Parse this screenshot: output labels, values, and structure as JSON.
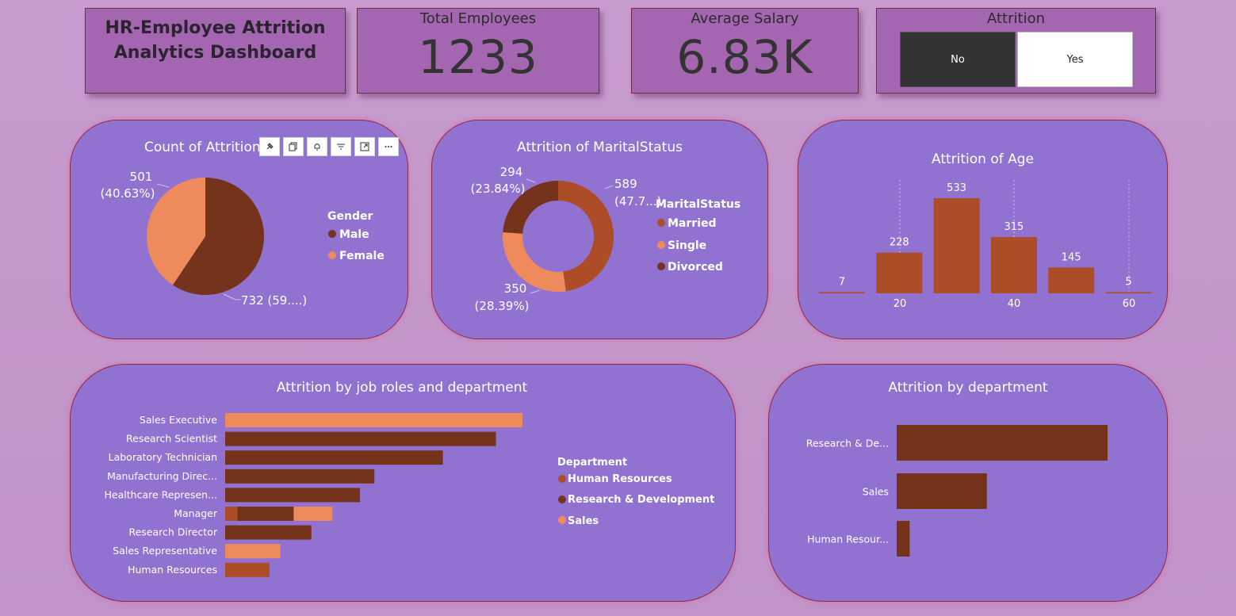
{
  "header": {
    "title_line1": "HR-Employee Attrition",
    "title_line2": "Analytics Dashboard"
  },
  "kpis": {
    "total_employees_label": "Total Employees",
    "total_employees_value": "1233",
    "avg_salary_label": "Average Salary",
    "avg_salary_value": "6.83K"
  },
  "slicer": {
    "title": "Attrition",
    "options": [
      "No",
      "Yes"
    ],
    "selected": "No"
  },
  "panels": {
    "gender": {
      "title": "Count of Attrition",
      "legend_title": "Gender",
      "slices": [
        {
          "name": "Male",
          "value": 732,
          "label_line1": "732 (59....)",
          "label_line2": "",
          "color": "#74331a"
        },
        {
          "name": "Female",
          "value": 501,
          "label_line1": "501",
          "label_line2": "(40.63%)",
          "color": "#ee8a5c"
        }
      ]
    },
    "marital": {
      "title": "Attrition of MaritalStatus",
      "legend_title": "MaritalStatus",
      "slices": [
        {
          "name": "Married",
          "value": 589,
          "label_line1": "589",
          "label_line2": "(47.7...)",
          "color": "#ad4d28"
        },
        {
          "name": "Single",
          "value": 350,
          "label_line1": "350",
          "label_line2": "(28.39%)",
          "color": "#ee8a5c"
        },
        {
          "name": "Divorced",
          "value": 294,
          "label_line1": "294",
          "label_line2": "(23.84%)",
          "color": "#74331a"
        }
      ]
    },
    "age": {
      "title": "Attrition of Age",
      "values": [
        7,
        228,
        533,
        315,
        145,
        5
      ],
      "value_labels": [
        "7",
        "228",
        "533",
        "315",
        "145",
        "5"
      ],
      "tick_labels": [
        "20",
        "40",
        "60"
      ],
      "color": "#ad4d28"
    },
    "jobroles": {
      "title": "Attrition by job roles and department",
      "legend_title": "Department",
      "departments": [
        {
          "name": "Human Resources",
          "color": "#ad4d28"
        },
        {
          "name": "Research & Development",
          "color": "#74331a"
        },
        {
          "name": "Sales",
          "color": "#ee8a5c"
        }
      ],
      "rows": [
        {
          "role": "Sales Executive",
          "hr": 0,
          "rd": 0,
          "sales": 269
        },
        {
          "role": "Research Scientist",
          "hr": 0,
          "rd": 245,
          "sales": 0
        },
        {
          "role": "Laboratory Technician",
          "hr": 0,
          "rd": 197,
          "sales": 0
        },
        {
          "role": "Manufacturing Direc...",
          "hr": 0,
          "rd": 135,
          "sales": 0
        },
        {
          "role": "Healthcare Represen...",
          "hr": 0,
          "rd": 122,
          "sales": 0
        },
        {
          "role": "Manager",
          "hr": 11,
          "rd": 51,
          "sales": 35
        },
        {
          "role": "Research Director",
          "hr": 0,
          "rd": 78,
          "sales": 0
        },
        {
          "role": "Sales Representative",
          "hr": 0,
          "rd": 0,
          "sales": 50
        },
        {
          "role": "Human Resources",
          "hr": 40,
          "rd": 0,
          "sales": 0
        }
      ]
    },
    "department": {
      "title": "Attrition by department",
      "categories": [
        "Research & De...",
        "Sales",
        "Human Resour..."
      ],
      "values": [
        828,
        354,
        51
      ],
      "color": "#74331a"
    }
  },
  "chart_data": [
    {
      "type": "pie",
      "title": "Count of Attrition",
      "legend_title": "Gender",
      "categories": [
        "Male",
        "Female"
      ],
      "values": [
        732,
        501
      ]
    },
    {
      "type": "pie",
      "title": "Attrition of MaritalStatus",
      "legend_title": "MaritalStatus",
      "categories": [
        "Married",
        "Single",
        "Divorced"
      ],
      "values": [
        589,
        350,
        294
      ]
    },
    {
      "type": "bar",
      "title": "Attrition of Age",
      "values": [
        7,
        228,
        533,
        315,
        145,
        5
      ],
      "tick_labels": [
        "20",
        "40",
        "60"
      ]
    },
    {
      "type": "bar",
      "title": "Attrition by job roles and department",
      "categories": [
        "Sales Executive",
        "Research Scientist",
        "Laboratory Technician",
        "Manufacturing Direc...",
        "Healthcare Represen...",
        "Manager",
        "Research Director",
        "Sales Representative",
        "Human Resources"
      ],
      "series": [
        {
          "name": "Human Resources",
          "values": [
            0,
            0,
            0,
            0,
            0,
            11,
            0,
            0,
            40
          ]
        },
        {
          "name": "Research & Development",
          "values": [
            0,
            245,
            197,
            135,
            122,
            51,
            78,
            0,
            0
          ]
        },
        {
          "name": "Sales",
          "values": [
            269,
            0,
            0,
            0,
            0,
            35,
            0,
            50,
            0
          ]
        }
      ],
      "legend_title": "Department"
    },
    {
      "type": "bar",
      "title": "Attrition by department",
      "categories": [
        "Research & De...",
        "Sales",
        "Human Resour..."
      ],
      "values": [
        828,
        354,
        51
      ]
    }
  ]
}
